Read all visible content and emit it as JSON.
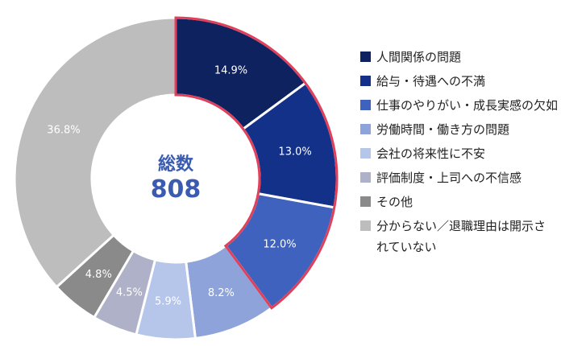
{
  "chart_data": {
    "type": "pie",
    "donut": true,
    "center_label": "総数",
    "center_value": "808",
    "categories": [
      "人間関係の問題",
      "給与・待遇への不満",
      "仕事のやりがい・成長実感の欠如",
      "労働時間・働き方の問題",
      "会社の将来性に不安",
      "評価制度・上司への不信感",
      "その他",
      "分からない／退職理由は開示されていない"
    ],
    "values": [
      14.9,
      13.0,
      12.0,
      8.2,
      5.9,
      4.5,
      4.8,
      36.8
    ],
    "value_labels": [
      "14.9%",
      "13.0%",
      "12.0%",
      "8.2%",
      "5.9%",
      "4.5%",
      "4.8%",
      "36.8%"
    ],
    "colors": [
      "#0f2260",
      "#14318a",
      "#3e62bd",
      "#8ea3da",
      "#b6c5ea",
      "#aeb1c8",
      "#8a8a8a",
      "#bdbdbd"
    ],
    "label_colors": [
      "#ffffff",
      "#ffffff",
      "#ffffff",
      "#ffffff",
      "#ffffff",
      "#ffffff",
      "#ffffff",
      "#ffffff"
    ],
    "highlight": {
      "segments": [
        0,
        1,
        2
      ],
      "color": "#e0405a"
    },
    "legend_position": "right"
  }
}
